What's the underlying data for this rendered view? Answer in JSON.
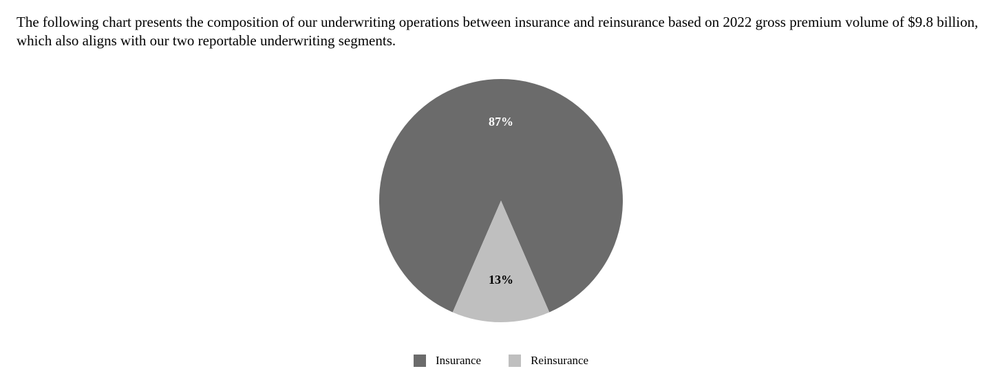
{
  "intro": {
    "text": "The following chart presents the composition of our underwriting operations between insurance and reinsurance based on 2022 gross premium volume of $9.8 billion, which also aligns with our two reportable underwriting segments."
  },
  "chart_data": {
    "type": "pie",
    "categories": [
      "Insurance",
      "Reinsurance"
    ],
    "values": [
      87,
      13
    ],
    "data_labels": [
      "87%",
      "13%"
    ],
    "colors": [
      "#6b6b6b",
      "#bfbfbf"
    ],
    "label_colors": [
      "#ffffff",
      "#000000"
    ],
    "legend": {
      "placement": "bottom",
      "entries": [
        "Insurance",
        "Reinsurance"
      ]
    }
  }
}
